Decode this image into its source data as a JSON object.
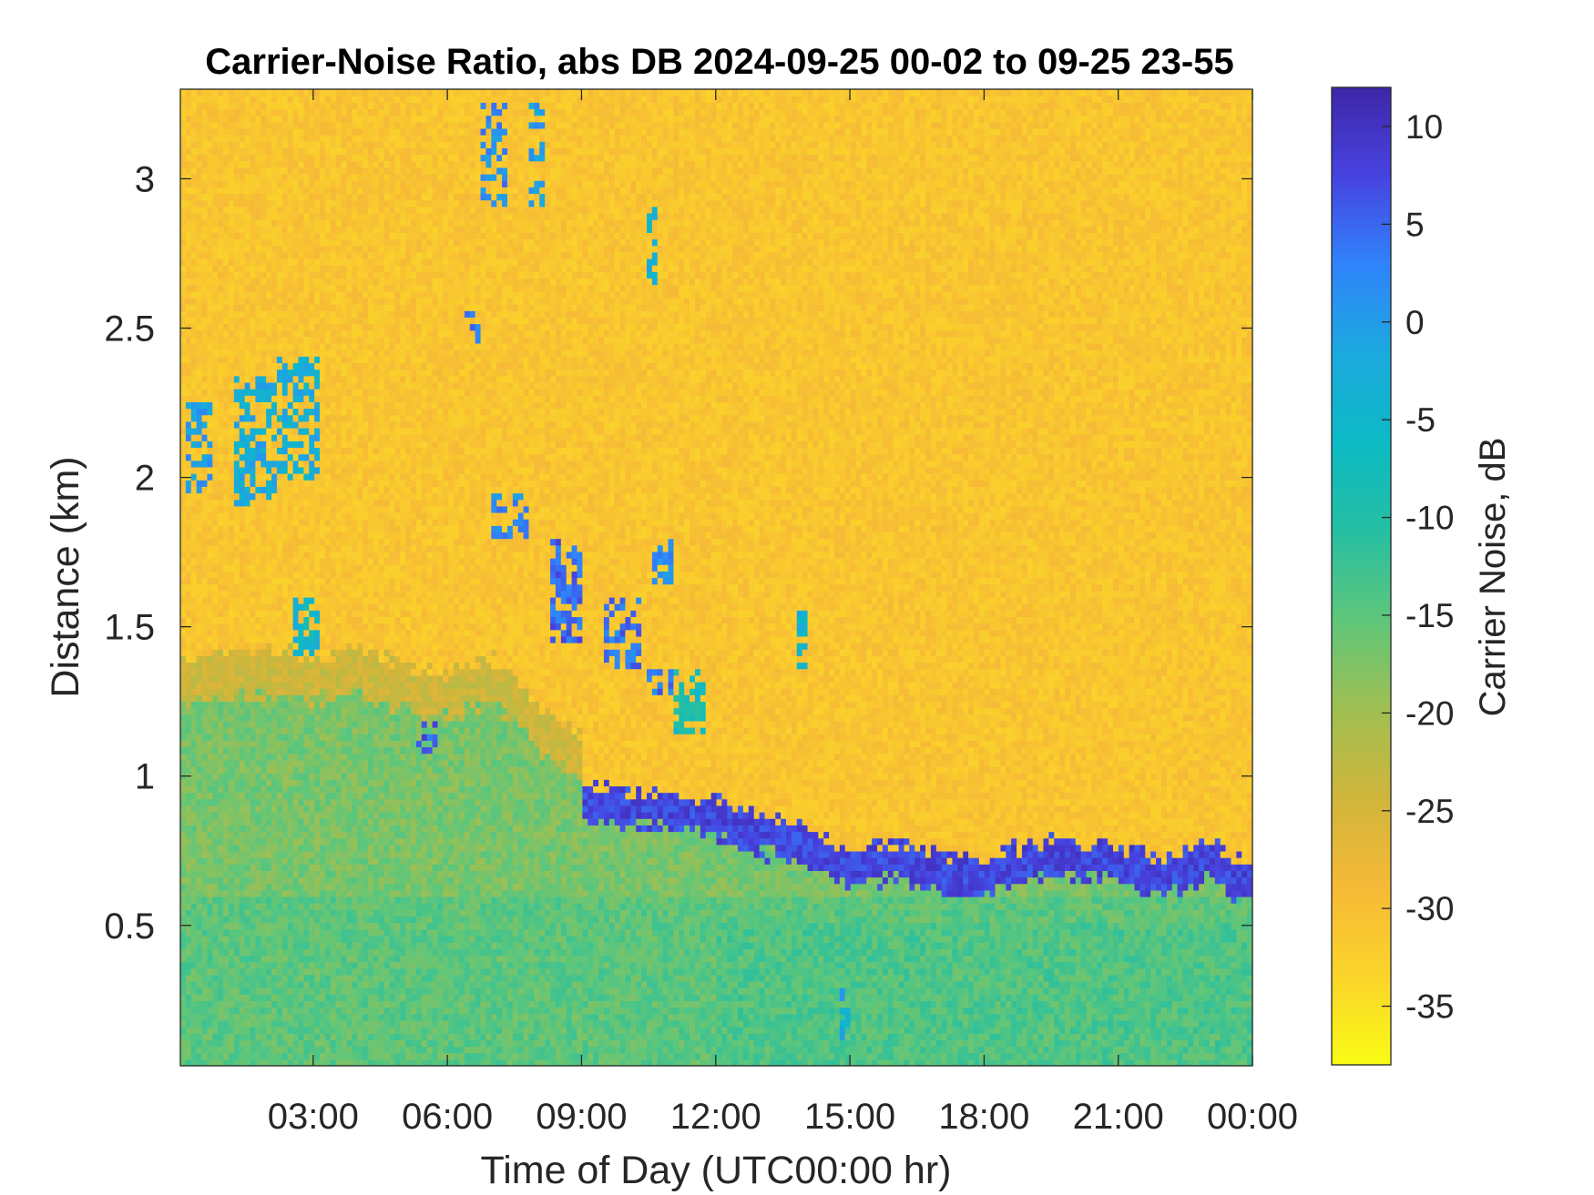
{
  "chart_data": {
    "type": "heatmap",
    "title": "Carrier-Noise Ratio, abs DB 2024-09-25 00-02 to 09-25 23-55",
    "xlabel": "Time of Day (UTC00:00 hr)",
    "ylabel": "Distance (km)",
    "colorbar_label": "Carrier Noise, dB",
    "xlim": [
      0.03,
      24.0
    ],
    "ylim": [
      0.03,
      3.3
    ],
    "clim": [
      -38,
      12
    ],
    "x_ticks": [
      3,
      6,
      9,
      12,
      15,
      18,
      21,
      24
    ],
    "x_tick_labels": [
      "03:00",
      "06:00",
      "09:00",
      "12:00",
      "15:00",
      "18:00",
      "21:00",
      "00:00"
    ],
    "y_ticks": [
      0.5,
      1,
      1.5,
      2,
      2.5,
      3
    ],
    "y_tick_labels": [
      "0.5",
      "1",
      "1.5",
      "2",
      "2.5",
      "3"
    ],
    "colorbar_ticks": [
      10,
      5,
      0,
      -5,
      -10,
      -15,
      -20,
      -25,
      -30,
      -35
    ],
    "colorbar_tick_labels": [
      "10",
      "5",
      "0",
      "-5",
      "-10",
      "-15",
      "-20",
      "-25",
      "-30",
      "-35"
    ],
    "colormap": [
      "#3e26a8",
      "#4743e0",
      "#2f84fb",
      "#1ca9de",
      "#0cbac4",
      "#26bfa2",
      "#5fc67a",
      "#a0bf52",
      "#d0b53b",
      "#f6b937",
      "#fbd42a",
      "#f9fb15"
    ],
    "background_level_db": -31,
    "cloud_base_km": [
      [
        0.03,
        1.25
      ],
      [
        1,
        1.27
      ],
      [
        2,
        1.27
      ],
      [
        3,
        1.25
      ],
      [
        4,
        1.28
      ],
      [
        5,
        1.22
      ],
      [
        6,
        1.2
      ],
      [
        7,
        1.25
      ],
      [
        8,
        1.1
      ],
      [
        9,
        0.98
      ],
      [
        10,
        0.95
      ],
      [
        11,
        0.95
      ],
      [
        12,
        0.92
      ],
      [
        13,
        0.87
      ],
      [
        14,
        0.83
      ],
      [
        15,
        0.75
      ],
      [
        16,
        0.78
      ],
      [
        17,
        0.73
      ],
      [
        18,
        0.72
      ],
      [
        19,
        0.78
      ],
      [
        20,
        0.78
      ],
      [
        21,
        0.77
      ],
      [
        22,
        0.72
      ],
      [
        23,
        0.78
      ],
      [
        24.0,
        0.7
      ]
    ],
    "cloud_layer_start_hr": 9,
    "features": [
      {
        "t0": 0.2,
        "t1": 0.8,
        "d0": 1.95,
        "d1": 2.25,
        "db": 0
      },
      {
        "t0": 1.2,
        "t1": 2.2,
        "d0": 1.9,
        "d1": 2.35,
        "db": -2
      },
      {
        "t0": 2.2,
        "t1": 3.2,
        "d0": 2.0,
        "d1": 2.4,
        "db": -3
      },
      {
        "t0": 2.5,
        "t1": 3.2,
        "d0": 1.4,
        "d1": 1.6,
        "db": -5
      },
      {
        "t0": 5.3,
        "t1": 5.8,
        "d0": 1.08,
        "d1": 1.18,
        "db": 6
      },
      {
        "t0": 6.7,
        "t1": 7.4,
        "d0": 2.9,
        "d1": 3.25,
        "db": 2
      },
      {
        "t0": 7.8,
        "t1": 8.2,
        "d0": 2.9,
        "d1": 3.25,
        "db": 0
      },
      {
        "t0": 7.0,
        "t1": 7.8,
        "d0": 1.8,
        "d1": 1.95,
        "db": 2
      },
      {
        "t0": 8.3,
        "t1": 9.0,
        "d0": 1.45,
        "d1": 1.8,
        "db": 5
      },
      {
        "t0": 9.5,
        "t1": 10.3,
        "d0": 1.35,
        "d1": 1.6,
        "db": 4
      },
      {
        "t0": 10.4,
        "t1": 11.0,
        "d0": 1.28,
        "d1": 1.35,
        "db": 4
      },
      {
        "t0": 11.1,
        "t1": 11.8,
        "d0": 1.15,
        "d1": 1.35,
        "db": -8
      },
      {
        "t0": 13.8,
        "t1": 14.0,
        "d0": 1.35,
        "d1": 1.55,
        "db": -4
      },
      {
        "t0": 14.8,
        "t1": 15.0,
        "d0": 0.12,
        "d1": 0.3,
        "db": -2
      },
      {
        "t0": 10.6,
        "t1": 11.0,
        "d0": 1.65,
        "d1": 1.8,
        "db": 1
      },
      {
        "t0": 10.5,
        "t1": 10.7,
        "d0": 2.65,
        "d1": 2.9,
        "db": -3
      },
      {
        "t0": 6.4,
        "t1": 6.7,
        "d0": 2.45,
        "d1": 2.55,
        "db": 3
      }
    ]
  }
}
